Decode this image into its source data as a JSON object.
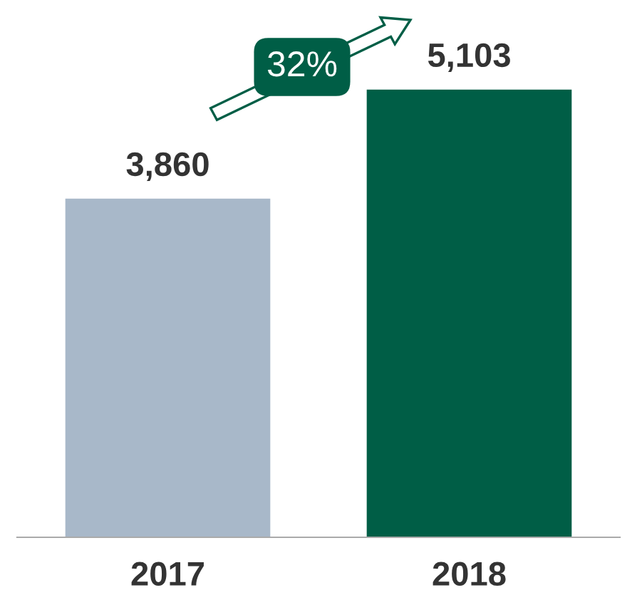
{
  "chart_data": {
    "type": "bar",
    "categories": [
      "2017",
      "2018"
    ],
    "values": [
      3860,
      5103
    ],
    "colors": [
      "#a8b8c9",
      "#005e46"
    ],
    "value_labels": [
      "3,860",
      "5,103"
    ],
    "annotations": [
      "32%"
    ],
    "grid": false,
    "legend": false
  }
}
